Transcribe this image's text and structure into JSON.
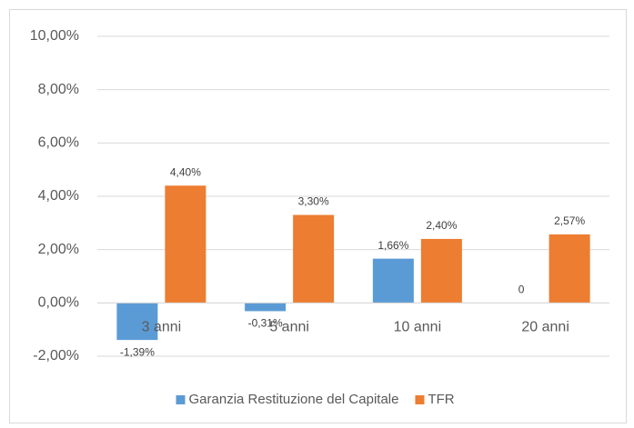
{
  "chart_data": {
    "type": "bar",
    "categories": [
      "3 anni",
      "5 anni",
      "10 anni",
      "20 anni"
    ],
    "series": [
      {
        "name": "Garanzia Restituzione del Capitale",
        "color": "#5b9bd5",
        "values": [
          -1.39,
          -0.31,
          1.66,
          0
        ],
        "value_labels": [
          "-1,39%",
          "-0,31%",
          "1,66%",
          "0"
        ]
      },
      {
        "name": "TFR",
        "color": "#ed7d31",
        "values": [
          4.4,
          3.3,
          2.4,
          2.57
        ],
        "value_labels": [
          "4,40%",
          "3,30%",
          "2,40%",
          "2,57%"
        ]
      }
    ],
    "ylim": [
      -2,
      10
    ],
    "yticks": [
      {
        "value": -2,
        "label": "-2,00%"
      },
      {
        "value": 0,
        "label": "0,00%"
      },
      {
        "value": 2,
        "label": "2,00%"
      },
      {
        "value": 4,
        "label": "4,00%"
      },
      {
        "value": 6,
        "label": "6,00%"
      },
      {
        "value": 8,
        "label": "8,00%"
      },
      {
        "value": 10,
        "label": "10,00%"
      }
    ],
    "grid": true,
    "legend": "bottom"
  }
}
